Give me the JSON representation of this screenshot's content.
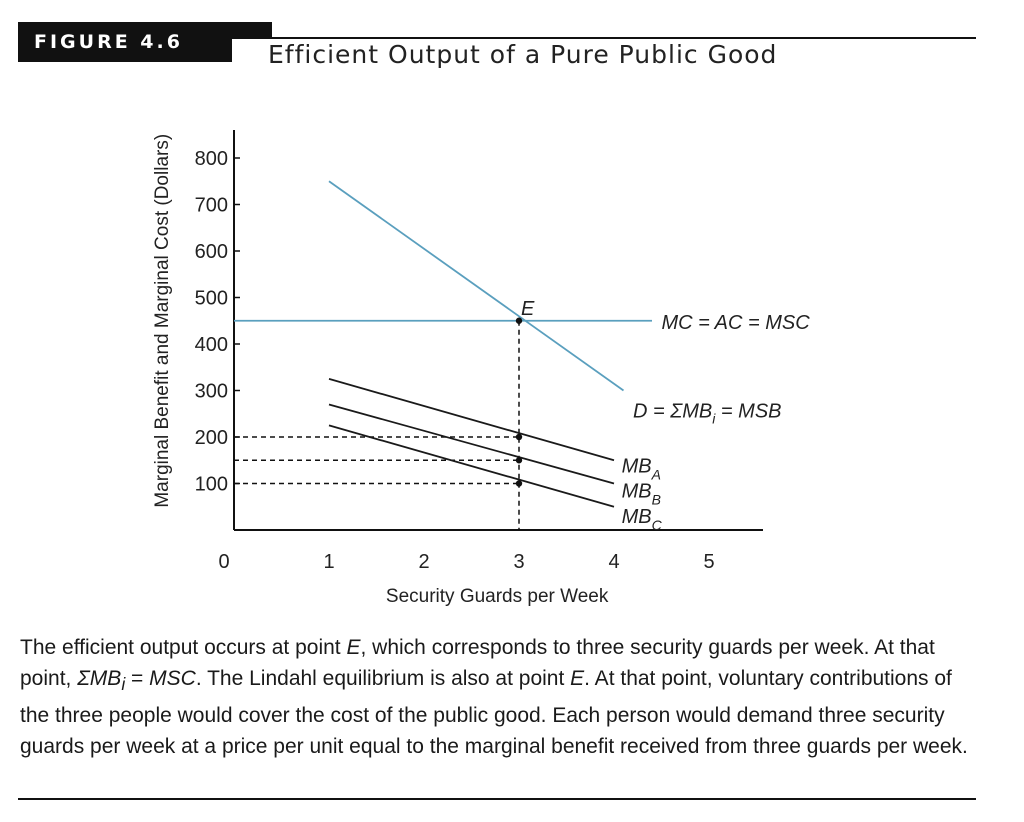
{
  "figure": {
    "label": "FIGURE 4.6",
    "title": "Efficient Output of a Pure Public Good"
  },
  "chart_data": {
    "type": "line",
    "title": "Efficient Output of a Pure Public Good",
    "xlabel": "Security Guards per Week",
    "ylabel": "Marginal Benefit and Marginal Cost (Dollars)",
    "xlim": [
      0,
      5.5
    ],
    "ylim": [
      0,
      850
    ],
    "x_ticks": [
      "0",
      "1",
      "2",
      "3",
      "4",
      "5"
    ],
    "y_ticks": [
      "100",
      "200",
      "300",
      "400",
      "500",
      "600",
      "700",
      "800"
    ],
    "series": [
      {
        "name": "D = ΣMB_i = MSB",
        "color": "#5a9fbe",
        "x": [
          1,
          4.1
        ],
        "y": [
          750,
          300
        ]
      },
      {
        "name": "MC = AC = MSC",
        "color": "#5a9fbe",
        "x": [
          0,
          4.4
        ],
        "y": [
          450,
          450
        ]
      },
      {
        "name": "MB_A",
        "color": "#1a1a1a",
        "x": [
          1,
          4
        ],
        "y": [
          325,
          150
        ]
      },
      {
        "name": "MB_B",
        "color": "#1a1a1a",
        "x": [
          1,
          4
        ],
        "y": [
          270,
          100
        ]
      },
      {
        "name": "MB_C",
        "color": "#1a1a1a",
        "x": [
          1,
          4
        ],
        "y": [
          225,
          50
        ]
      }
    ],
    "points": [
      {
        "label": "E",
        "x": 3,
        "y": 450
      },
      {
        "label": "",
        "x": 3,
        "y": 200
      },
      {
        "label": "",
        "x": 3,
        "y": 150
      },
      {
        "label": "",
        "x": 3,
        "y": 100
      }
    ],
    "guides": {
      "vertical_x": 3,
      "horizontal_y": [
        200,
        150,
        100
      ]
    },
    "annotations": {
      "E": "E",
      "mc": "MC = AC = MSC",
      "d": "D = ΣMB",
      "d_sub": "i",
      "d_tail": " = MSB",
      "mb": "MB",
      "mb_a_sub": "A",
      "mb_b_sub": "B",
      "mb_c_sub": "C"
    }
  },
  "caption": {
    "p1": "The efficient output occurs at point ",
    "e1": "E",
    "p2": ", which corresponds to three security guards per week. At that point, ",
    "sum1": "ΣMB",
    "sub1": "i",
    "p3": " = ",
    "msc": "MSC",
    "p4": ". The Lindahl equilibrium is also at point ",
    "e2": "E",
    "p5": ". At that point, voluntary contributions of the three people would cover the cost of the public good. Each person would demand three security guards per week at a price per unit equal to the marginal benefit received from three guards per week."
  }
}
